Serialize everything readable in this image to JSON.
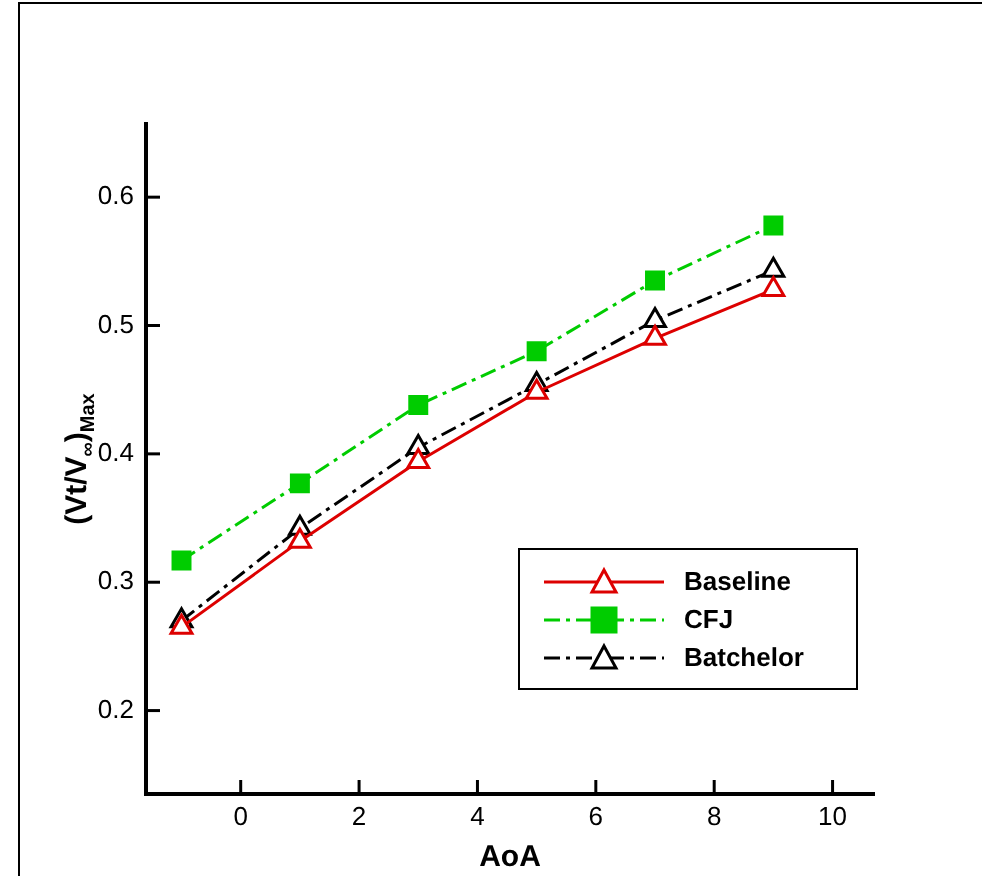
{
  "chart_data": {
    "type": "line",
    "xlabel": "AoA",
    "ylabel": "(Vt/V$_{∞}$)$_{Max}$",
    "x": [
      -1,
      1,
      3,
      5,
      7,
      9
    ],
    "series": [
      {
        "name": "Baseline",
        "color": "#dd0000",
        "marker": "triangle",
        "line_style": "solid",
        "values": [
          0.265,
          0.332,
          0.394,
          0.448,
          0.49,
          0.528
        ]
      },
      {
        "name": "CFJ",
        "color": "#00cc00",
        "marker": "square",
        "line_style": "dashed",
        "values": [
          0.317,
          0.377,
          0.438,
          0.48,
          0.535,
          0.578
        ]
      },
      {
        "name": "Batchelor",
        "color": "#000000",
        "marker": "triangle",
        "line_style": "dashed",
        "values": [
          0.27,
          0.342,
          0.405,
          0.454,
          0.504,
          0.543
        ]
      }
    ],
    "xlim": [
      -1.6,
      10.7
    ],
    "xticks": [
      0,
      2,
      4,
      6,
      8,
      10
    ],
    "ylim": [
      0.135,
      0.657
    ],
    "yticks": [
      0.2,
      0.3,
      0.4,
      0.5,
      0.6
    ],
    "grid": false,
    "legend": "bottom right"
  }
}
